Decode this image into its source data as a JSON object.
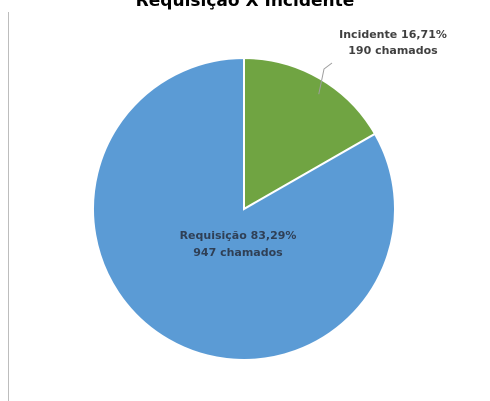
{
  "chart_data": {
    "type": "pie",
    "title": "Requisição X Incidente",
    "slices": [
      {
        "name": "Incidente",
        "percent": 16.71,
        "count": 190,
        "label_line1": "Incidente 16,71%",
        "label_line2": "190 chamados",
        "color": "#70a442",
        "label_color": "#404040"
      },
      {
        "name": "Requisição",
        "percent": 83.29,
        "count": 947,
        "label_line1": "Requisição 83,29%",
        "label_line2": "947 chamados",
        "color": "#5b9bd5",
        "label_color": "#2f3f55"
      }
    ],
    "start_angle": "12 o'clock",
    "direction": "clockwise",
    "legend": "none",
    "slice_border_color": "#ffffff"
  }
}
